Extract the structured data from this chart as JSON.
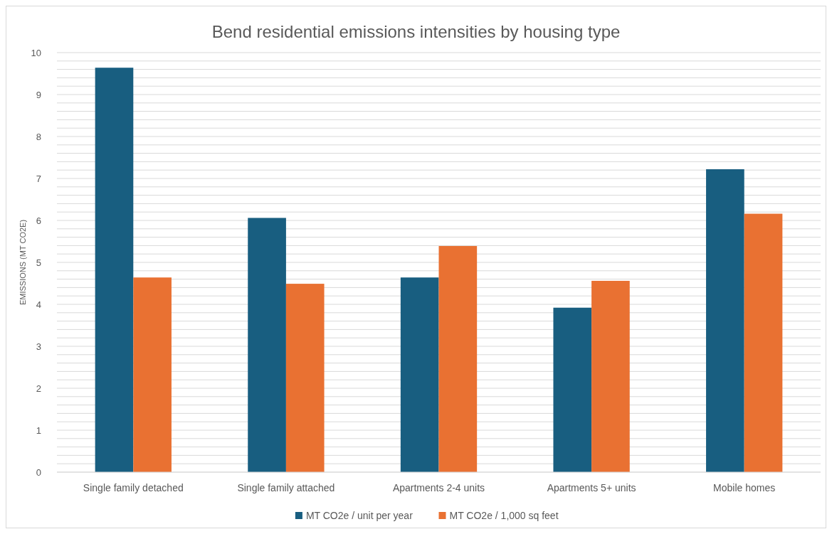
{
  "chart_data": {
    "type": "bar",
    "title": "Bend residential emissions intensities by housing type",
    "ylabel": "EMISSIONS (MT CO2E)",
    "categories": [
      "Single family detached",
      "Single family attached",
      "Apartments 2-4 units",
      "Apartments 5+ units",
      "Mobile homes"
    ],
    "series": [
      {
        "name": "MT CO2e / unit per year",
        "color": "#185e80",
        "values": [
          9.64,
          6.06,
          4.64,
          3.92,
          7.22
        ]
      },
      {
        "name": "MT CO2e / 1,000 sq feet",
        "color": "#e97132",
        "values": [
          4.64,
          4.49,
          5.39,
          4.56,
          6.16
        ]
      }
    ],
    "ylim": [
      0,
      10
    ],
    "yticks": [
      0,
      {
        "value": 0.2,
        "label": null
      },
      {
        "value": 0.4,
        "label": null
      },
      {
        "value": 0.6,
        "label": null
      },
      {
        "value": 0.8,
        "label": null
      },
      1,
      {
        "value": 1.2,
        "label": null
      },
      {
        "value": 1.4,
        "label": null
      },
      {
        "value": 1.6,
        "label": null
      },
      {
        "value": 1.8,
        "label": null
      },
      2,
      {
        "value": 2.2,
        "label": null
      },
      {
        "value": 2.4,
        "label": null
      },
      {
        "value": 2.6,
        "label": null
      },
      {
        "value": 2.8,
        "label": null
      },
      3,
      {
        "value": 3.2,
        "label": null
      },
      {
        "value": 3.4,
        "label": null
      },
      {
        "value": 3.6,
        "label": null
      },
      {
        "value": 3.8,
        "label": null
      },
      4,
      {
        "value": 4.2,
        "label": null
      },
      {
        "value": 4.4,
        "label": null
      },
      {
        "value": 4.6,
        "label": null
      },
      {
        "value": 4.8,
        "label": null
      },
      5,
      {
        "value": 5.2,
        "label": null
      },
      {
        "value": 5.4,
        "label": null
      },
      {
        "value": 5.6,
        "label": null
      },
      {
        "value": 5.8,
        "label": null
      },
      6,
      {
        "value": 6.2,
        "label": null
      },
      {
        "value": 6.4,
        "label": null
      },
      {
        "value": 6.6,
        "label": null
      },
      {
        "value": 6.8,
        "label": null
      },
      7,
      {
        "value": 7.2,
        "label": null
      },
      {
        "value": 7.4,
        "label": null
      },
      {
        "value": 7.6,
        "label": null
      },
      {
        "value": 7.8,
        "label": null
      },
      8,
      {
        "value": 8.2,
        "label": null
      },
      {
        "value": 8.4,
        "label": null
      },
      {
        "value": 8.6,
        "label": null
      },
      {
        "value": 8.8,
        "label": null
      },
      9,
      {
        "value": 9.2,
        "label": null
      },
      {
        "value": 9.4,
        "label": null
      },
      {
        "value": 9.6,
        "label": null
      },
      {
        "value": 9.8,
        "label": null
      },
      10
    ],
    "grid": true,
    "legend": "bottom"
  }
}
